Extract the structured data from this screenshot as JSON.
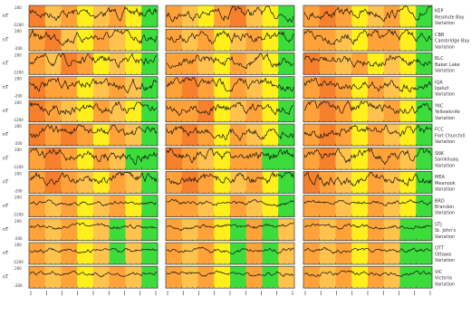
{
  "chart_data": {
    "type": "line",
    "panel_columns": 3,
    "y_unit": "nT",
    "y_ticks": [
      "200",
      "-200",
      "-1200"
    ],
    "colors": {
      "green": "#3ddc3d",
      "yellow": "#ffef1c",
      "light_orange": "#ffc24c",
      "orange": "#ffa23a",
      "dark_orange": "#f6802c",
      "trace": "#111111"
    },
    "stations": [
      {
        "code": "KEP",
        "name": "Resolute Bay",
        "sub": "Variation",
        "bands": [
          "dark_orange,light_orange,orange,yellow,light_orange,orange,yellow,green",
          "orange,light_orange,yellow,orange,dark_orange,light_orange,yellow,green",
          "orange,dark_orange,orange,yellow,light_orange,orange,yellow,green"
        ]
      },
      {
        "code": "CBB",
        "name": "Cambridge Bay",
        "sub": "Variation",
        "bands": [
          "orange,dark_orange,light_orange,yellow,orange,light_orange,yellow,green",
          "orange,light_orange,orange,yellow,light_orange,orange,yellow,green",
          "orange,orange,light_orange,yellow,orange,orange,yellow,green"
        ]
      },
      {
        "code": "BLC",
        "name": "Baker Lake",
        "sub": "Variation",
        "bands": [
          "orange,light_orange,dark_orange,orange,yellow,light_orange,yellow,green",
          "orange,orange,light_orange,yellow,orange,light_orange,yellow,green",
          "dark_orange,orange,light_orange,orange,yellow,light_orange,yellow,green"
        ]
      },
      {
        "code": "IQA",
        "name": "Iqaluit",
        "sub": "Variation",
        "bands": [
          "dark_orange,orange,orange,yellow,light_orange,orange,light_orange,green",
          "orange,dark_orange,orange,yellow,orange,light_orange,yellow,green",
          "orange,dark_orange,orange,yellow,orange,light_orange,yellow,green"
        ]
      },
      {
        "code": "YKC",
        "name": "Yellowknife",
        "sub": "Variation",
        "bands": [
          "dark_orange,orange,light_orange,yellow,orange,light_orange,yellow,green",
          "orange,orange,dark_orange,yellow,light_orange,orange,yellow,green",
          "orange,dark_orange,orange,yellow,light_orange,orange,yellow,green"
        ]
      },
      {
        "code": "FCC",
        "name": "Fort Churchill",
        "sub": "Variation",
        "bands": [
          "dark_orange,orange,dark_orange,orange,yellow,orange,light_orange,green",
          "orange,dark_orange,orange,yellow,orange,light_orange,yellow,green",
          "orange,dark_orange,orange,yellow,orange,light_orange,yellow,green"
        ]
      },
      {
        "code": "SNK",
        "name": "Sanikiluaq",
        "sub": "Variation",
        "bands": [
          "orange,dark_orange,orange,yellow,orange,light_orange,green,green",
          "dark_orange,orange,light_orange,yellow,orange,orange,green,green",
          "orange,dark_orange,light_orange,yellow,orange,orange,light_orange,green"
        ]
      },
      {
        "code": "MEA",
        "name": "Meanook",
        "sub": "Variation",
        "bands": [
          "orange,dark_orange,orange,light_orange,yellow,orange,light_orange,green",
          "orange,dark_orange,orange,yellow,light_orange,orange,yellow,green",
          "dark_orange,orange,light_orange,yellow,orange,light_orange,yellow,green"
        ]
      },
      {
        "code": "BRD",
        "name": "Brandon",
        "sub": "Variation",
        "bands": [
          "orange,light_orange,orange,yellow,light_orange,orange,yellow,green",
          "orange,orange,light_orange,yellow,orange,light_orange,yellow,green",
          "orange,orange,light_orange,yellow,orange,light_orange,yellow,green"
        ]
      },
      {
        "code": "STJ",
        "name": "St. John's",
        "sub": "Variation",
        "bands": [
          "orange,light_orange,orange,yellow,light_orange,green,light_orange,green",
          "orange,light_orange,orange,yellow,green,orange,green,light_orange",
          "orange,light_orange,orange,yellow,orange,light_orange,green,green"
        ]
      },
      {
        "code": "OTT",
        "name": "Ottawa",
        "sub": "Variation",
        "bands": [
          "orange,light_orange,orange,yellow,light_orange,green,light_orange,green",
          "orange,light_orange,orange,yellow,green,orange,green,light_orange",
          "orange,light_orange,orange,yellow,orange,light_orange,green,green"
        ]
      },
      {
        "code": "VIC",
        "name": "Victoria",
        "sub": "Variation",
        "bands": [
          "orange,light_orange,orange,yellow,light_orange,orange,light_orange,green",
          "orange,light_orange,orange,yellow,green,orange,green,light_orange",
          "orange,light_orange,orange,yellow,orange,light_orange,green,green"
        ]
      }
    ]
  }
}
